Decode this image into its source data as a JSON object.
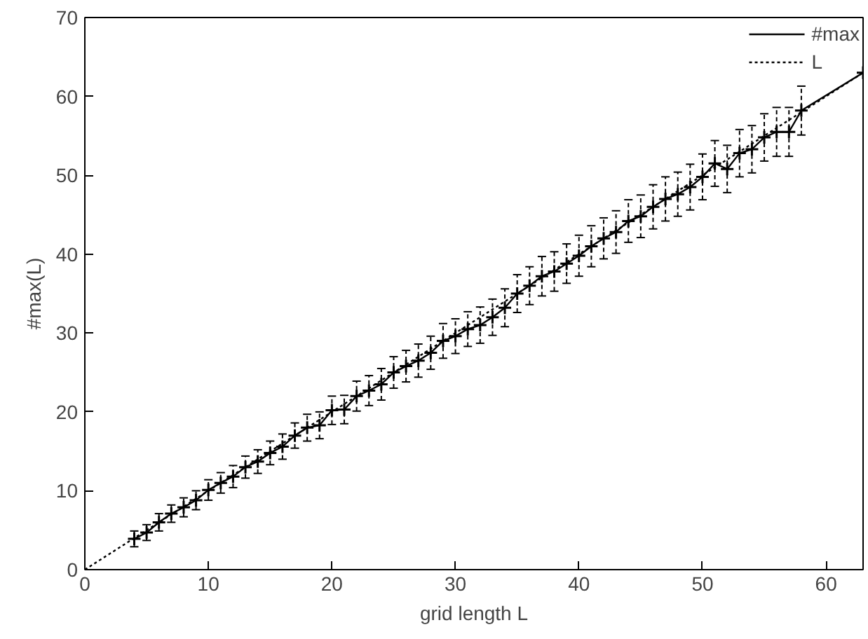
{
  "chart_data": {
    "type": "line",
    "xlabel": "grid length L",
    "ylabel": "#max(L)",
    "xlim": [
      0,
      63
    ],
    "ylim": [
      0,
      70
    ],
    "xticks": [
      0,
      10,
      20,
      30,
      40,
      50,
      60
    ],
    "yticks": [
      0,
      10,
      20,
      30,
      40,
      50,
      60,
      70
    ],
    "grid": false,
    "legend": "top right",
    "series": [
      {
        "name": "#max",
        "color": "#000000",
        "marker": "cross",
        "line_style": "solid",
        "x": [
          4,
          5,
          6,
          7,
          8,
          9,
          10,
          11,
          12,
          13,
          14,
          15,
          16,
          17,
          18,
          19,
          20,
          21,
          22,
          23,
          24,
          25,
          26,
          27,
          28,
          29,
          30,
          31,
          32,
          33,
          34,
          35,
          36,
          37,
          38,
          39,
          40,
          41,
          42,
          43,
          44,
          45,
          46,
          47,
          48,
          49,
          50,
          51,
          52,
          53,
          54,
          55,
          56,
          57,
          58,
          63
        ],
        "values": [
          3.9,
          4.7,
          6.0,
          7.1,
          7.9,
          8.8,
          10.1,
          11.0,
          11.8,
          13.0,
          13.7,
          14.8,
          15.6,
          17.0,
          18.0,
          18.3,
          20.2,
          20.3,
          22.0,
          22.7,
          23.5,
          25.0,
          25.8,
          26.5,
          27.5,
          29.0,
          29.6,
          30.5,
          31.0,
          32.0,
          33.2,
          35.0,
          36.0,
          37.2,
          37.8,
          38.8,
          39.8,
          41.0,
          42.0,
          42.8,
          44.2,
          44.8,
          46.0,
          47.0,
          47.6,
          48.5,
          49.8,
          51.5,
          50.8,
          52.8,
          53.3,
          54.8,
          55.5,
          55.5,
          58.2,
          63.0
        ],
        "errors": [
          1.0,
          1.0,
          1.1,
          1.1,
          1.2,
          1.2,
          1.3,
          1.3,
          1.4,
          1.4,
          1.5,
          1.5,
          1.6,
          1.6,
          1.7,
          1.7,
          1.8,
          1.8,
          1.9,
          1.9,
          2.0,
          2.0,
          2.0,
          2.1,
          2.1,
          2.2,
          2.2,
          2.2,
          2.3,
          2.3,
          2.4,
          2.4,
          2.4,
          2.5,
          2.5,
          2.5,
          2.6,
          2.6,
          2.6,
          2.7,
          2.7,
          2.7,
          2.8,
          2.8,
          2.8,
          2.9,
          2.9,
          2.9,
          3.0,
          3.0,
          3.0,
          3.0,
          3.1,
          3.1,
          3.1,
          null
        ]
      },
      {
        "name": "L",
        "color": "#000000",
        "marker": "none",
        "line_style": "dotted",
        "x": [
          0,
          63
        ],
        "values": [
          0,
          63
        ]
      }
    ]
  }
}
